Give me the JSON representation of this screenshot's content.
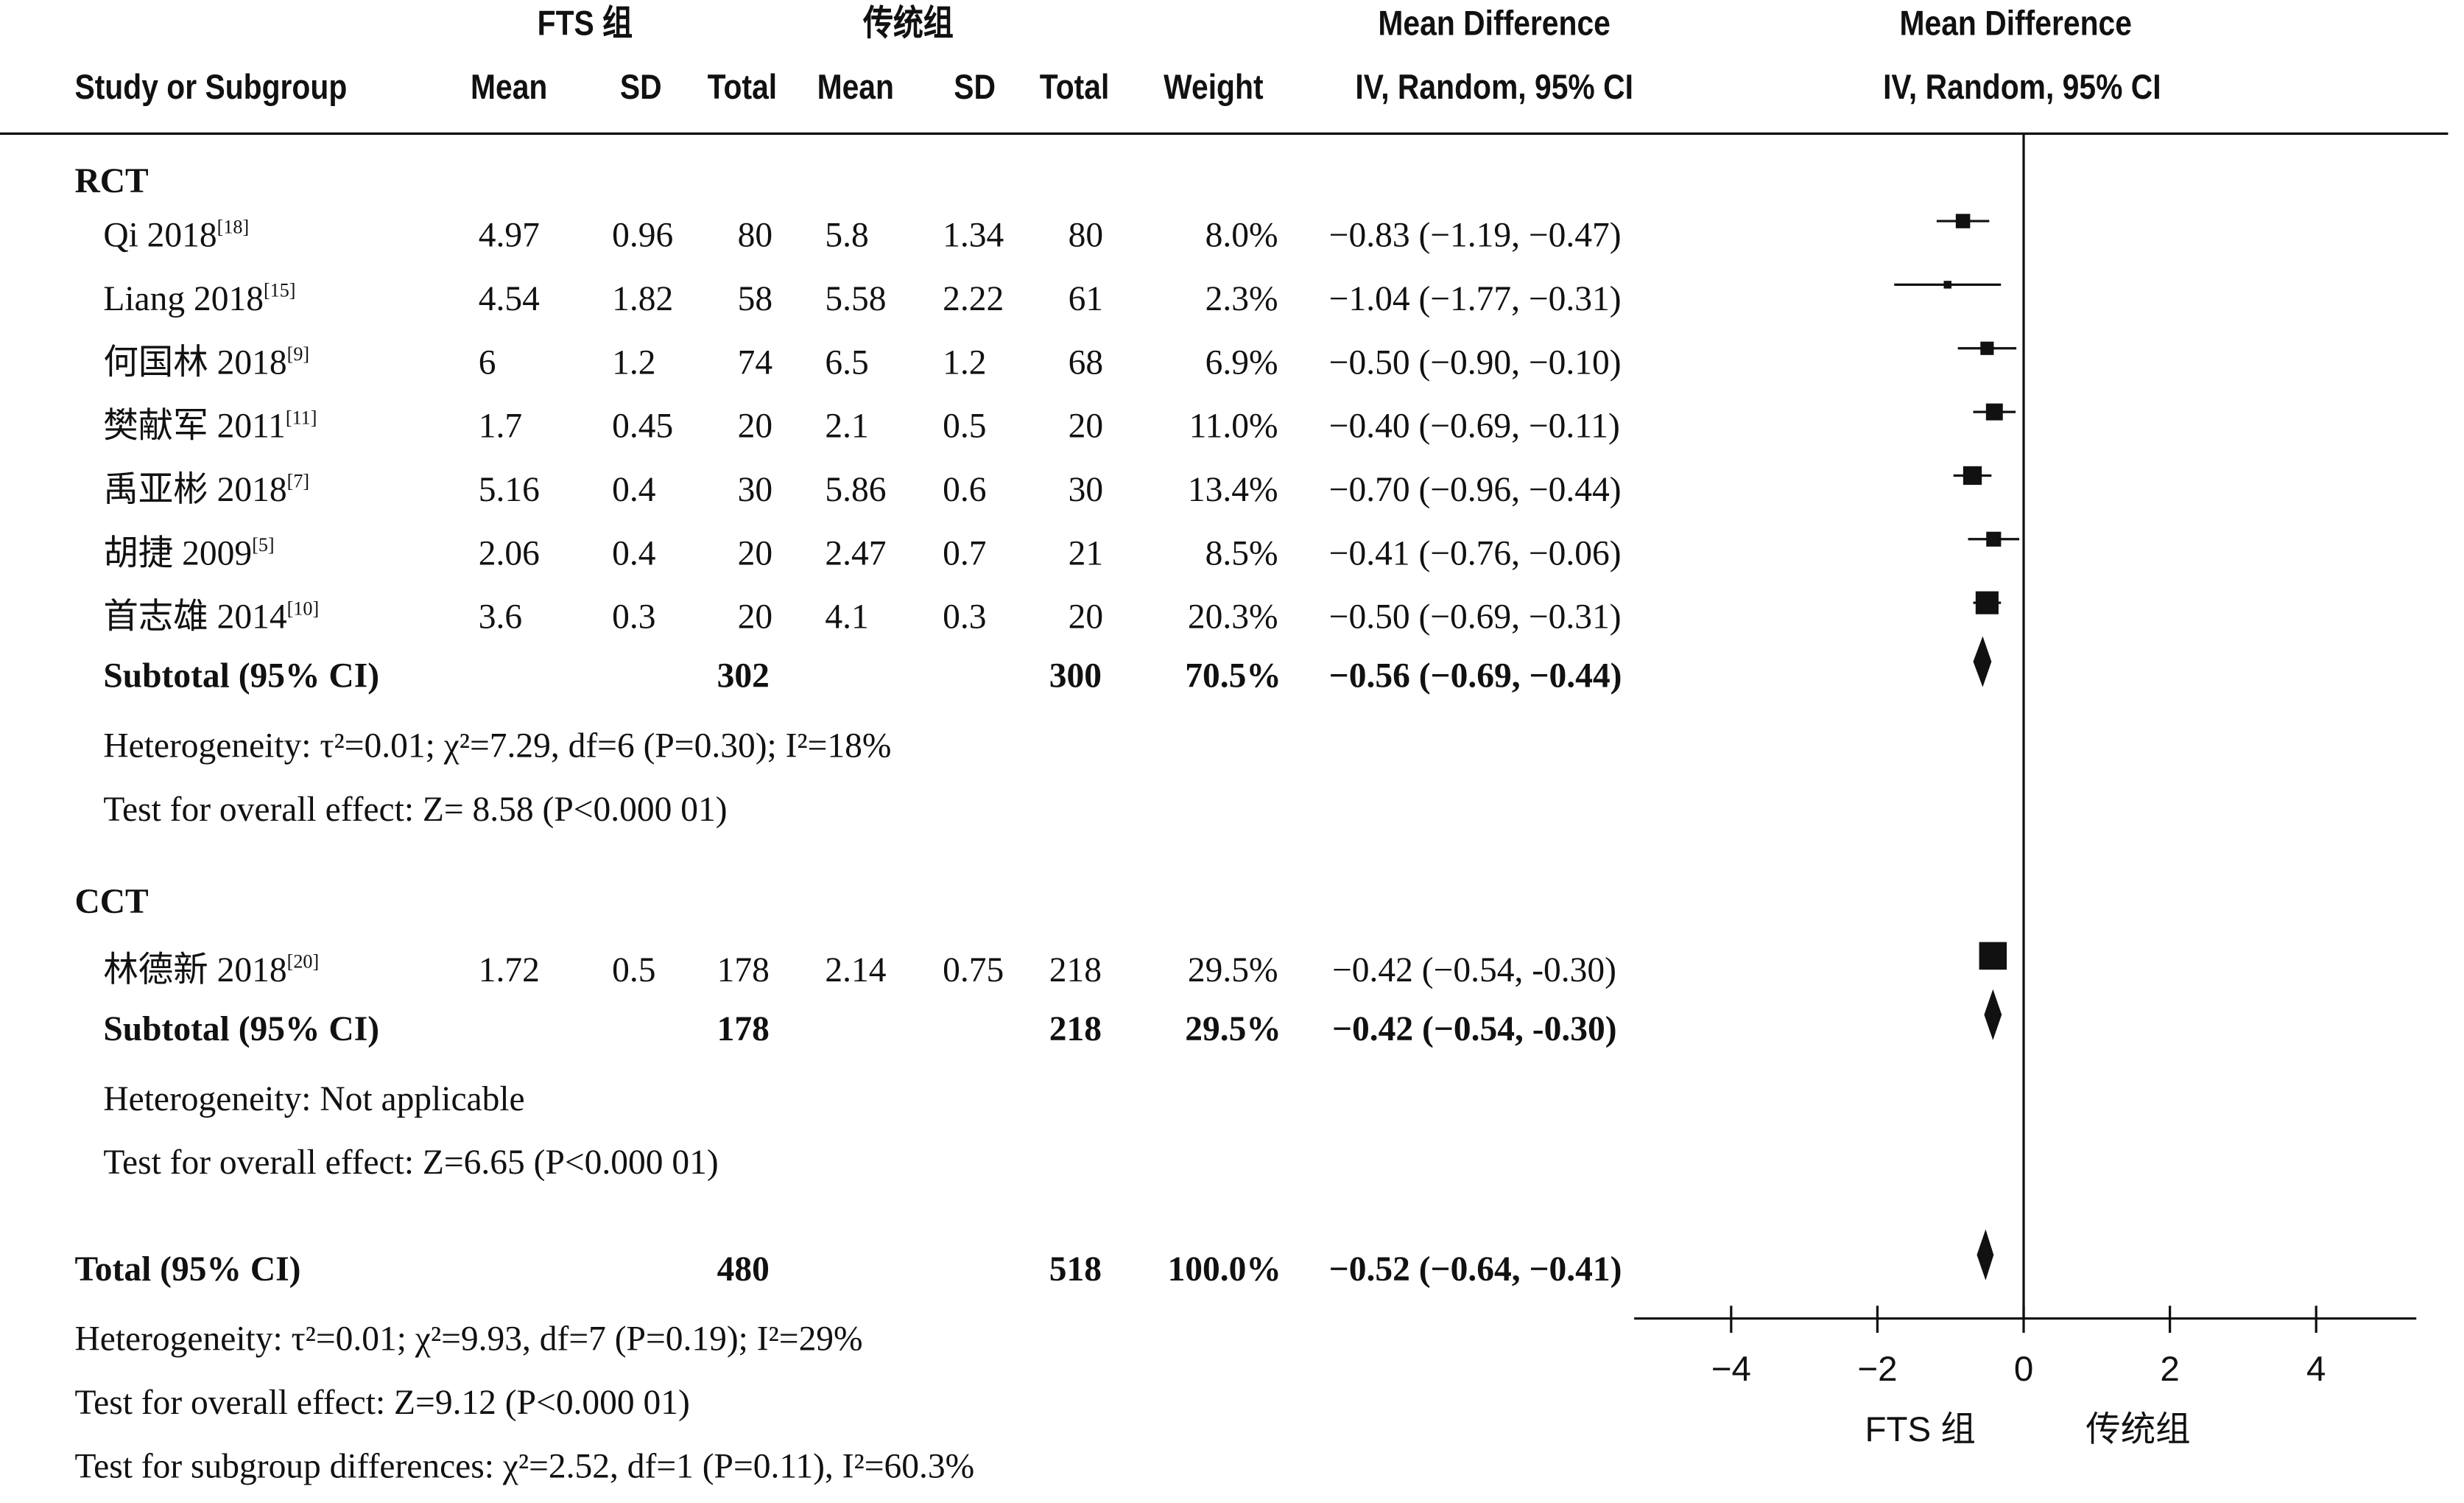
{
  "header": {
    "group1": "FTS 组",
    "group2": "传统组",
    "md_title": "Mean Difference",
    "md_sub": "IV, Random, 95% CI",
    "plot_title": "Mean Difference",
    "plot_sub": "IV, Random, 95% CI",
    "study": "Study or Subgroup",
    "mean": "Mean",
    "sd": "SD",
    "total": "Total",
    "weight": "Weight"
  },
  "subgroups": [
    {
      "label": "RCT",
      "studies": [
        {
          "name": "Qi 2018",
          "ref": "[18]",
          "m1": "4.97",
          "sd1": "0.96",
          "n1": "80",
          "m2": "5.8",
          "sd2": "1.34",
          "n2": "80",
          "weight": "8.0%",
          "ci": "−0.83 (−1.19, −0.47)"
        },
        {
          "name": "Liang 2018",
          "ref": "[15]",
          "m1": "4.54",
          "sd1": "1.82",
          "n1": "58",
          "m2": "5.58",
          "sd2": "2.22",
          "n2": "61",
          "weight": "2.3%",
          "ci": "−1.04 (−1.77, −0.31)"
        },
        {
          "name": "何国林 2018",
          "ref": "[9]",
          "m1": "6",
          "sd1": "1.2",
          "n1": "74",
          "m2": "6.5",
          "sd2": "1.2",
          "n2": "68",
          "weight": "6.9%",
          "ci": "−0.50 (−0.90, −0.10)"
        },
        {
          "name": "樊献军 2011",
          "ref": "[11]",
          "m1": "1.7",
          "sd1": "0.45",
          "n1": "20",
          "m2": "2.1",
          "sd2": "0.5",
          "n2": "20",
          "weight": "11.0%",
          "ci": "−0.40 (−0.69, −0.11)"
        },
        {
          "name": "禹亚彬 2018",
          "ref": "[7]",
          "m1": "5.16",
          "sd1": "0.4",
          "n1": "30",
          "m2": "5.86",
          "sd2": "0.6",
          "n2": "30",
          "weight": "13.4%",
          "ci": "−0.70 (−0.96, −0.44)"
        },
        {
          "name": "胡捷 2009",
          "ref": "[5]",
          "m1": "2.06",
          "sd1": "0.4",
          "n1": "20",
          "m2": "2.47",
          "sd2": "0.7",
          "n2": "21",
          "weight": "8.5%",
          "ci": "−0.41 (−0.76, −0.06)"
        },
        {
          "name": "首志雄 2014",
          "ref": "[10]",
          "m1": "3.6",
          "sd1": "0.3",
          "n1": "20",
          "m2": "4.1",
          "sd2": "0.3",
          "n2": "20",
          "weight": "20.3%",
          "ci": "−0.50 (−0.69, −0.31)"
        }
      ],
      "subtotal": {
        "label": "Subtotal (95% CI)",
        "n1": "302",
        "n2": "300",
        "weight": "70.5%",
        "ci": "−0.56 (−0.69, −0.44)"
      },
      "heterogeneity": "Heterogeneity: τ²=0.01; χ²=7.29, df=6 (P=0.30); I²=18%",
      "overall": "Test for overall effect: Z= 8.58 (P<0.000 01)"
    },
    {
      "label": "CCT",
      "studies": [
        {
          "name": "林德新 2018",
          "ref": "[20]",
          "m1": "1.72",
          "sd1": "0.5",
          "n1": "178",
          "m2": "2.14",
          "sd2": "0.75",
          "n2": "218",
          "weight": "29.5%",
          "ci": "−0.42 (−0.54, -0.30)"
        }
      ],
      "subtotal": {
        "label": "Subtotal (95% CI)",
        "n1": "178",
        "n2": "218",
        "weight": "29.5%",
        "ci": "−0.42 (−0.54, -0.30)"
      },
      "heterogeneity": "Heterogeneity: Not applicable",
      "overall": "Test for overall effect: Z=6.65 (P<0.000 01)"
    }
  ],
  "total": {
    "label": "Total (95% CI)",
    "n1": "480",
    "n2": "518",
    "weight": "100.0%",
    "ci": "−0.52 (−0.64, −0.41)"
  },
  "footer": {
    "heterogeneity": "Heterogeneity: τ²=0.01; χ²=9.93, df=7 (P=0.19); I²=29%",
    "overall": "Test for overall effect: Z=9.12 (P<0.000 01)",
    "subgroup_diff": "Test for subgroup differences: χ²=2.52, df=1 (P=0.11), I²=60.3%"
  },
  "chart_data": {
    "type": "forest",
    "xlim": [
      -5,
      5
    ],
    "xticks": [
      -4,
      -2,
      0,
      2,
      4
    ],
    "xtick_labels": [
      "−4",
      "−2",
      "0",
      "2",
      "4"
    ],
    "favours_left": "FTS 组",
    "favours_right": "传统组",
    "studies": [
      {
        "name": "Qi 2018",
        "md": -0.83,
        "lo": -1.19,
        "hi": -0.47,
        "weight": 8.0
      },
      {
        "name": "Liang 2018",
        "md": -1.04,
        "lo": -1.77,
        "hi": -0.31,
        "weight": 2.3
      },
      {
        "name": "何国林 2018",
        "md": -0.5,
        "lo": -0.9,
        "hi": -0.1,
        "weight": 6.9
      },
      {
        "name": "樊献军 2011",
        "md": -0.4,
        "lo": -0.69,
        "hi": -0.11,
        "weight": 11.0
      },
      {
        "name": "禹亚彬 2018",
        "md": -0.7,
        "lo": -0.96,
        "hi": -0.44,
        "weight": 13.4
      },
      {
        "name": "胡捷 2009",
        "md": -0.41,
        "lo": -0.76,
        "hi": -0.06,
        "weight": 8.5
      },
      {
        "name": "首志雄 2014",
        "md": -0.5,
        "lo": -0.69,
        "hi": -0.31,
        "weight": 20.3
      },
      {
        "name": "林德新 2018",
        "md": -0.42,
        "lo": -0.54,
        "hi": -0.3,
        "weight": 29.5
      }
    ],
    "diamonds": [
      {
        "name": "Subtotal RCT",
        "md": -0.56,
        "lo": -0.69,
        "hi": -0.44
      },
      {
        "name": "Subtotal CCT",
        "md": -0.42,
        "lo": -0.54,
        "hi": -0.3
      },
      {
        "name": "Total",
        "md": -0.52,
        "lo": -0.64,
        "hi": -0.41
      }
    ]
  }
}
